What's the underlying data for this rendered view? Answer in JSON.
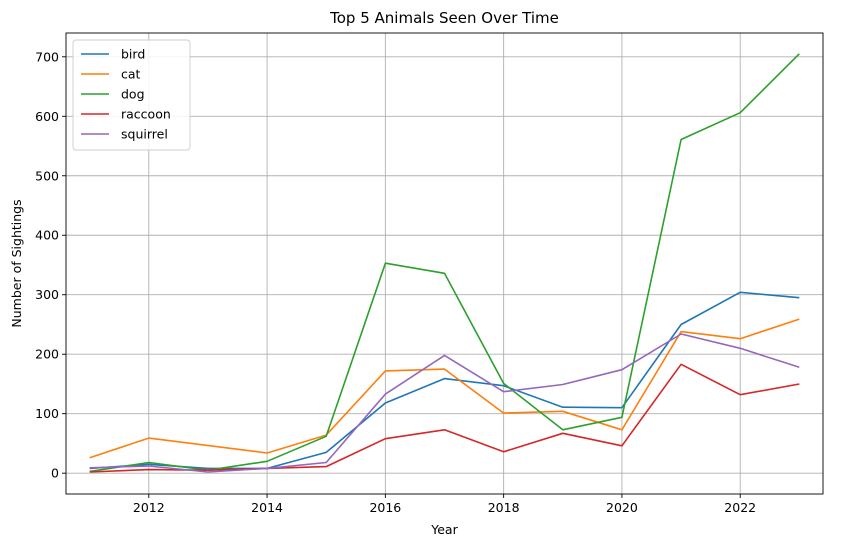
{
  "chart_data": {
    "type": "line",
    "title": "Top 5 Animals Seen Over Time",
    "xlabel": "Year",
    "ylabel": "Number of Sightings",
    "xlim": [
      2010.6,
      2023.4
    ],
    "ylim": [
      -35,
      740
    ],
    "xticks": [
      2012,
      2014,
      2016,
      2018,
      2020,
      2022
    ],
    "yticks": [
      0,
      100,
      200,
      300,
      400,
      500,
      600,
      700
    ],
    "grid": true,
    "legend_position": "upper-left",
    "x": [
      2011,
      2012,
      2013,
      2014,
      2015,
      2016,
      2017,
      2018,
      2019,
      2020,
      2021,
      2022,
      2023
    ],
    "series": [
      {
        "name": "bird",
        "color": "#1f77b4",
        "values": [
          8,
          15,
          8,
          8,
          35,
          118,
          159,
          147,
          111,
          110,
          250,
          304,
          295
        ]
      },
      {
        "name": "cat",
        "color": "#ff7f0e",
        "values": [
          26,
          59,
          null,
          34,
          64,
          172,
          175,
          101,
          104,
          73,
          238,
          226,
          259
        ]
      },
      {
        "name": "dog",
        "color": "#2ca02c",
        "values": [
          3,
          18,
          5,
          20,
          62,
          353,
          336,
          151,
          73,
          94,
          561,
          606,
          705
        ]
      },
      {
        "name": "raccoon",
        "color": "#d62728",
        "values": [
          2,
          6,
          5,
          8,
          11,
          58,
          73,
          36,
          67,
          46,
          183,
          132,
          150
        ]
      },
      {
        "name": "squirrel",
        "color": "#9467bd",
        "values": [
          9,
          12,
          2,
          8,
          18,
          133,
          198,
          137,
          149,
          174,
          234,
          210,
          178
        ]
      }
    ]
  }
}
